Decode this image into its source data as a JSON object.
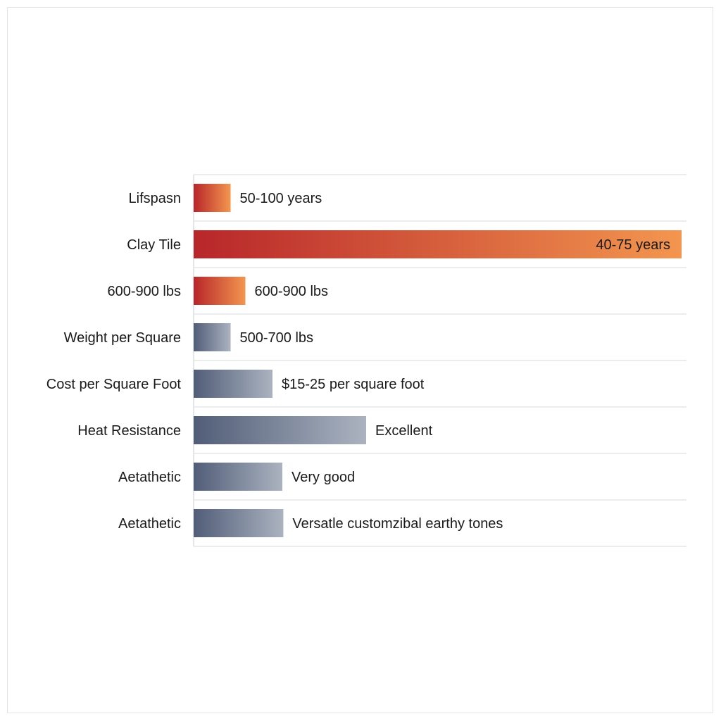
{
  "chart_data": {
    "type": "bar",
    "orientation": "horizontal",
    "title": "",
    "xlabel": "",
    "ylabel": "",
    "grid": true,
    "legend": "none",
    "xlim": [
      0,
      100
    ],
    "categories": [
      "Lifspasn",
      "Clay Tile",
      "600-900 lbs",
      "Weight per Square",
      "Cost per Square Foot",
      "Heat Resistance",
      "Aetathetic",
      "Aetathetic"
    ],
    "values": [
      7.5,
      99,
      10.5,
      7.5,
      16,
      35,
      18,
      18.2
    ],
    "data_labels": [
      "50-100 years",
      "40-75 years",
      "600-900 lbs",
      "500-700 lbs",
      "$15-25 per square foot",
      "Excellent",
      "Very good",
      "Versatle customzibal earthy tones"
    ],
    "colors": {
      "warm_start": "#b8262a",
      "warm_end": "#f3964f",
      "cool_start": "#515d78",
      "cool_end": "#abb3c0"
    },
    "bar_color_group": [
      "warm",
      "warm",
      "warm",
      "cool",
      "cool",
      "cool",
      "cool",
      "cool"
    ]
  }
}
